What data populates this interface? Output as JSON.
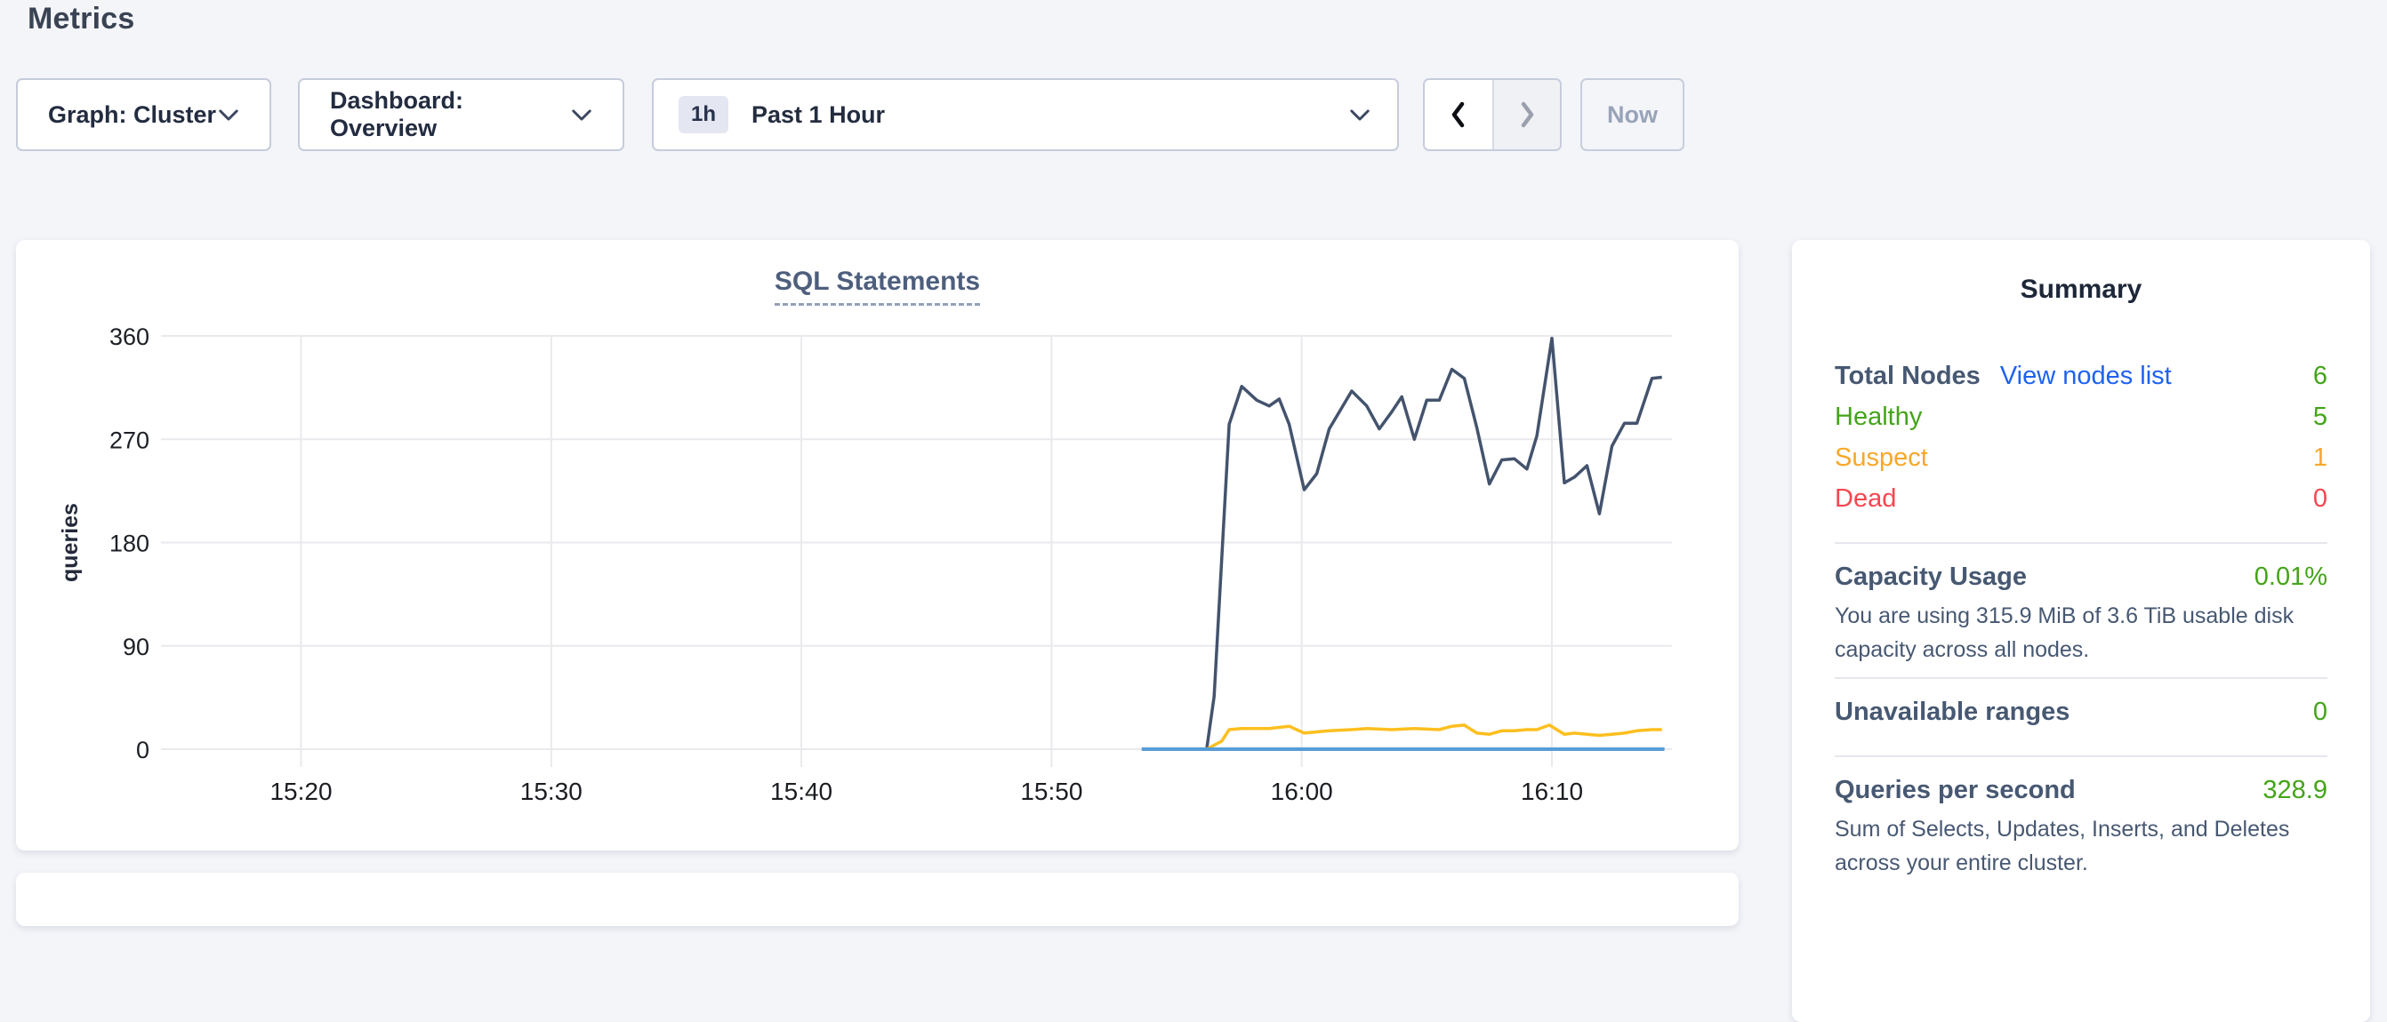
{
  "page": {
    "title": "Metrics"
  },
  "toolbar": {
    "graph_dropdown_label": "Graph: Cluster",
    "dashboard_dropdown_label": "Dashboard: Overview",
    "time_range": {
      "badge": "1h",
      "label": "Past 1 Hour"
    },
    "now_button_label": "Now"
  },
  "chart_data": {
    "type": "line",
    "title": "SQL Statements",
    "xlabel": "",
    "ylabel": "queries",
    "ylim": [
      0,
      360
    ],
    "y_ticks": [
      0,
      90,
      180,
      270,
      360
    ],
    "x_ticks": [
      "15:20",
      "15:30",
      "15:40",
      "15:50",
      "16:00",
      "16:10"
    ],
    "x_tick_minutes": [
      20,
      30,
      40,
      50,
      60,
      70
    ],
    "x_domain_minutes": [
      14.4,
      74.8
    ],
    "x_unit": "minutes after 15:00",
    "grid": true,
    "legend_position": "none",
    "series": [
      {
        "name": "statements-dark",
        "color": "#44536d",
        "width": 3.5,
        "points": [
          [
            56.2,
            0
          ],
          [
            56.5,
            46
          ],
          [
            57.1,
            283
          ],
          [
            57.6,
            316
          ],
          [
            58.2,
            304
          ],
          [
            58.7,
            299
          ],
          [
            59.1,
            305
          ],
          [
            59.5,
            283
          ],
          [
            60.1,
            226
          ],
          [
            60.6,
            240
          ],
          [
            61.1,
            279
          ],
          [
            62.0,
            312
          ],
          [
            62.6,
            299
          ],
          [
            63.1,
            279
          ],
          [
            63.6,
            294
          ],
          [
            64.0,
            307
          ],
          [
            64.5,
            270
          ],
          [
            65.0,
            304
          ],
          [
            65.5,
            304
          ],
          [
            66.0,
            331
          ],
          [
            66.5,
            323
          ],
          [
            67.0,
            280
          ],
          [
            67.5,
            231
          ],
          [
            68.0,
            252
          ],
          [
            68.5,
            253
          ],
          [
            69.0,
            244
          ],
          [
            69.4,
            273
          ],
          [
            70.0,
            358
          ],
          [
            70.5,
            232
          ],
          [
            70.9,
            237
          ],
          [
            71.4,
            247
          ],
          [
            71.9,
            205
          ],
          [
            72.4,
            264
          ],
          [
            72.9,
            284
          ],
          [
            73.4,
            284
          ],
          [
            74.0,
            323
          ],
          [
            74.4,
            324
          ]
        ]
      },
      {
        "name": "statements-yellow",
        "color": "#fdbf1f",
        "width": 3.5,
        "points": [
          [
            56.2,
            0
          ],
          [
            56.8,
            7
          ],
          [
            57.1,
            17
          ],
          [
            57.6,
            18
          ],
          [
            58.7,
            18
          ],
          [
            59.5,
            20
          ],
          [
            60.1,
            14
          ],
          [
            61.1,
            16
          ],
          [
            62.0,
            17
          ],
          [
            62.6,
            18
          ],
          [
            63.6,
            17
          ],
          [
            64.5,
            18
          ],
          [
            65.5,
            17
          ],
          [
            66.0,
            20
          ],
          [
            66.5,
            21
          ],
          [
            67.0,
            14
          ],
          [
            67.5,
            13
          ],
          [
            68.0,
            16
          ],
          [
            68.5,
            16
          ],
          [
            69.0,
            17
          ],
          [
            69.4,
            17
          ],
          [
            69.9,
            21
          ],
          [
            70.5,
            13
          ],
          [
            70.9,
            14
          ],
          [
            71.4,
            13
          ],
          [
            71.9,
            12
          ],
          [
            72.4,
            13
          ],
          [
            72.9,
            14
          ],
          [
            73.4,
            16
          ],
          [
            74.0,
            17
          ],
          [
            74.4,
            17
          ]
        ]
      },
      {
        "name": "statements-blue",
        "color": "#579dd8",
        "width": 4,
        "points": [
          [
            53.6,
            0
          ],
          [
            74.5,
            0
          ]
        ]
      }
    ]
  },
  "summary": {
    "title": "Summary",
    "total_nodes": {
      "label": "Total Nodes",
      "link": "View nodes list",
      "link_color": "#1e62f0",
      "value": "6",
      "value_color": "#43a419"
    },
    "statuses": [
      {
        "label": "Healthy",
        "value": "5",
        "color": "#43a419"
      },
      {
        "label": "Suspect",
        "value": "1",
        "color": "#f8a729"
      },
      {
        "label": "Dead",
        "value": "0",
        "color": "#f5464f"
      }
    ],
    "capacity": {
      "label": "Capacity Usage",
      "value": "0.01%",
      "value_color": "#43a419",
      "description": "You are using 315.9 MiB of 3.6 TiB usable disk capacity across all nodes."
    },
    "unavailable_ranges": {
      "label": "Unavailable ranges",
      "value": "0",
      "value_color": "#43a419"
    },
    "qps": {
      "label": "Queries per second",
      "value": "328.9",
      "value_color": "#43a419",
      "description": "Sum of Selects, Updates, Inserts, and Deletes across your entire cluster."
    }
  }
}
